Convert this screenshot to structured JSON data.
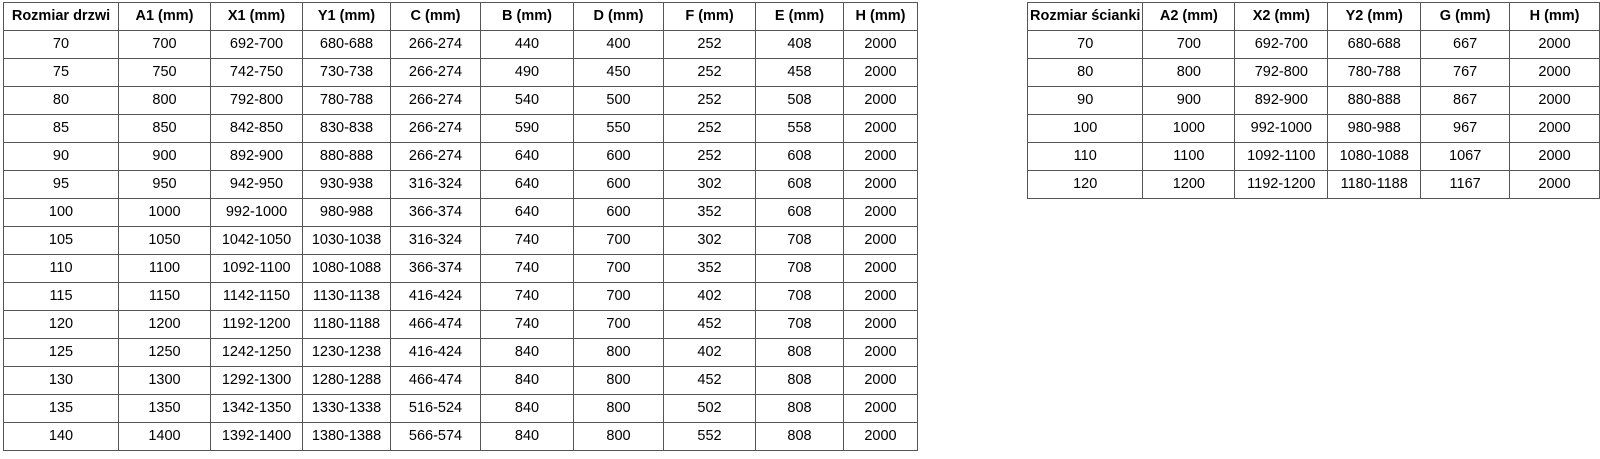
{
  "door_table": {
    "title": "Rozmiar drzwi",
    "headers": [
      "Rozmiar drzwi",
      "A1 (mm)",
      "X1 (mm)",
      "Y1 (mm)",
      "C (mm)",
      "B (mm)",
      "D (mm)",
      "F (mm)",
      "E (mm)",
      "H (mm)"
    ],
    "rows": [
      [
        "70",
        "700",
        "692-700",
        "680-688",
        "266-274",
        "440",
        "400",
        "252",
        "408",
        "2000"
      ],
      [
        "75",
        "750",
        "742-750",
        "730-738",
        "266-274",
        "490",
        "450",
        "252",
        "458",
        "2000"
      ],
      [
        "80",
        "800",
        "792-800",
        "780-788",
        "266-274",
        "540",
        "500",
        "252",
        "508",
        "2000"
      ],
      [
        "85",
        "850",
        "842-850",
        "830-838",
        "266-274",
        "590",
        "550",
        "252",
        "558",
        "2000"
      ],
      [
        "90",
        "900",
        "892-900",
        "880-888",
        "266-274",
        "640",
        "600",
        "252",
        "608",
        "2000"
      ],
      [
        "95",
        "950",
        "942-950",
        "930-938",
        "316-324",
        "640",
        "600",
        "302",
        "608",
        "2000"
      ],
      [
        "100",
        "1000",
        "992-1000",
        "980-988",
        "366-374",
        "640",
        "600",
        "352",
        "608",
        "2000"
      ],
      [
        "105",
        "1050",
        "1042-1050",
        "1030-1038",
        "316-324",
        "740",
        "700",
        "302",
        "708",
        "2000"
      ],
      [
        "110",
        "1100",
        "1092-1100",
        "1080-1088",
        "366-374",
        "740",
        "700",
        "352",
        "708",
        "2000"
      ],
      [
        "115",
        "1150",
        "1142-1150",
        "1130-1138",
        "416-424",
        "740",
        "700",
        "402",
        "708",
        "2000"
      ],
      [
        "120",
        "1200",
        "1192-1200",
        "1180-1188",
        "466-474",
        "740",
        "700",
        "452",
        "708",
        "2000"
      ],
      [
        "125",
        "1250",
        "1242-1250",
        "1230-1238",
        "416-424",
        "840",
        "800",
        "402",
        "808",
        "2000"
      ],
      [
        "130",
        "1300",
        "1292-1300",
        "1280-1288",
        "466-474",
        "840",
        "800",
        "452",
        "808",
        "2000"
      ],
      [
        "135",
        "1350",
        "1342-1350",
        "1330-1338",
        "516-524",
        "840",
        "800",
        "502",
        "808",
        "2000"
      ],
      [
        "140",
        "1400",
        "1392-1400",
        "1380-1388",
        "566-574",
        "840",
        "800",
        "552",
        "808",
        "2000"
      ]
    ]
  },
  "wall_table": {
    "title": "Rozmiar ścianki",
    "headers": [
      "Rozmiar ścianki",
      "A2 (mm)",
      "X2 (mm)",
      "Y2 (mm)",
      "G (mm)",
      "H (mm)"
    ],
    "rows": [
      [
        "70",
        "700",
        "692-700",
        "680-688",
        "667",
        "2000"
      ],
      [
        "80",
        "800",
        "792-800",
        "780-788",
        "767",
        "2000"
      ],
      [
        "90",
        "900",
        "892-900",
        "880-888",
        "867",
        "2000"
      ],
      [
        "100",
        "1000",
        "992-1000",
        "980-988",
        "967",
        "2000"
      ],
      [
        "110",
        "1100",
        "1092-1100",
        "1080-1088",
        "1067",
        "2000"
      ],
      [
        "120",
        "1200",
        "1192-1200",
        "1180-1188",
        "1167",
        "2000"
      ]
    ]
  },
  "colors": {
    "border": "#555555",
    "text": "#000000",
    "background": "#ffffff"
  }
}
